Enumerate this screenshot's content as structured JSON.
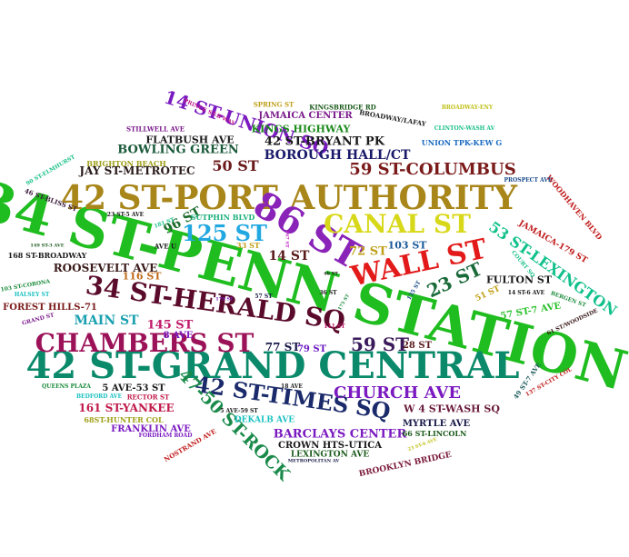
{
  "words": [
    {
      "text": "34 ST-PENN STATION",
      "color": "#1fbd1f",
      "rotate": 15
    },
    {
      "text": "42 ST-GRAND CENTRAL",
      "color": "#0a8a6a"
    },
    {
      "text": "42 ST-PORT AUTHORITY",
      "color": "#a8861a"
    },
    {
      "text": "34 ST-HERALD SQ",
      "color": "#5a0a2a",
      "rotate": 8
    },
    {
      "text": "CHAMBERS ST",
      "color": "#9c1259"
    },
    {
      "text": "86 ST",
      "color": "#8a24b8",
      "rotate": 30
    },
    {
      "text": "CANAL ST",
      "color": "#d8d81a"
    },
    {
      "text": "WALL ST",
      "color": "#e21a1a",
      "rotate": -12
    },
    {
      "text": "42 ST-TIMES SQ",
      "color": "#1a2a6a",
      "rotate": 8
    },
    {
      "text": "125 ST",
      "color": "#22a8e0"
    },
    {
      "text": "14 ST-UNION SQ",
      "color": "#7a1ac0",
      "rotate": 18
    },
    {
      "text": "47-50 ST-ROCK",
      "color": "#1a8a4a",
      "rotate": 45
    },
    {
      "text": "53 ST-LEXINGTON",
      "color": "#10c08a",
      "rotate": 35
    },
    {
      "text": "CHURCH AVE",
      "color": "#7a1ac0"
    },
    {
      "text": "59 ST-COLUMBUS",
      "color": "#7a1a1a"
    },
    {
      "text": "59 ST",
      "color": "#3a1a5a"
    },
    {
      "text": "23 ST",
      "color": "#1a6a3a",
      "rotate": -25
    },
    {
      "text": "96 ST",
      "color": "#1a6a2a",
      "rotate": -30
    },
    {
      "text": "50 ST",
      "color": "#6a1a1a"
    },
    {
      "text": "BOROUGH HALL/CT",
      "color": "#1a1a6a"
    },
    {
      "text": "42 ST-BRYANT PK",
      "color": "#1a1a1a"
    },
    {
      "text": "ROOSEVELT AVE",
      "color": "#3a1a1a"
    },
    {
      "text": "MAIN ST",
      "color": "#1aa0b0"
    },
    {
      "text": "BARCLAYS CENTER",
      "color": "#7a1ac0"
    },
    {
      "text": "W 4 ST-WASH SQ",
      "color": "#6a1a3a"
    },
    {
      "text": "JAY ST-METROTEC",
      "color": "#2a1a1a"
    },
    {
      "text": "BOWLING GREEN",
      "color": "#1a5a3a"
    },
    {
      "text": "FLATBUSH AVE",
      "color": "#1a1a1a"
    },
    {
      "text": "KINGS HIGHWAY",
      "color": "#1a8a1a"
    },
    {
      "text": "JAMAICA CENTER",
      "color": "#7a1a8a"
    },
    {
      "text": "145 ST",
      "color": "#c01a6a"
    },
    {
      "text": "14 ST",
      "color": "#5a1a1a"
    },
    {
      "text": "77 ST",
      "color": "#1a1a4a"
    },
    {
      "text": "72 ST",
      "color": "#c0a01a"
    },
    {
      "text": "103 ST",
      "color": "#1a5a9a"
    },
    {
      "text": "FULTON ST",
      "color": "#1a1a1a"
    },
    {
      "text": "JAMAICA-179 ST",
      "color": "#c01a1a",
      "rotate": 30
    },
    {
      "text": "WOODHAVEN BLVD",
      "color": "#c01a1a",
      "rotate": 50
    },
    {
      "text": "161 ST-YANKEE",
      "color": "#c01a4a"
    },
    {
      "text": "CROWN HTS-UTICA",
      "color": "#1a1a1a"
    },
    {
      "text": "MYRTLE AVE",
      "color": "#1a1a4a"
    },
    {
      "text": "FRANKLIN AVE",
      "color": "#7a1ac0"
    },
    {
      "text": "LEXINGTON AVE",
      "color": "#1a5a1a"
    },
    {
      "text": "BROOKLYN BRIDGE",
      "color": "#7a1a3a",
      "rotate": -12
    },
    {
      "text": "FOREST HILLS-71",
      "color": "#7a1a1a"
    },
    {
      "text": "5 AVE-53 ST",
      "color": "#1a1a1a"
    },
    {
      "text": "116 ST",
      "color": "#c06a1a"
    },
    {
      "text": "57 ST-7 AVE",
      "color": "#2ac02a",
      "rotate": -10
    },
    {
      "text": "28 ST",
      "color": "#5a1a1a"
    },
    {
      "text": "79 ST",
      "color": "#6a1ac0"
    },
    {
      "text": "UNION TPK-KEW G",
      "color": "#1a6ac0"
    },
    {
      "text": "SUTPHIN BLVD",
      "color": "#1ab07a"
    },
    {
      "text": "DEKALB AVE",
      "color": "#1ac0c0"
    },
    {
      "text": "8 AVE",
      "color": "#7a1ac0"
    },
    {
      "text": "51 ST",
      "color": "#c0a01a",
      "rotate": -25
    },
    {
      "text": "BRIGHTON BEACH",
      "color": "#a0a01a"
    },
    {
      "text": "68ST-HUNTER COL",
      "color": "#a0a01a"
    },
    {
      "text": "49 ST-7 AVE",
      "color": "#1a5a5a",
      "rotate": -55
    },
    {
      "text": "66 ST-LINCOLN",
      "color": "#1a5a1a"
    },
    {
      "text": "168 ST-BROADWAY",
      "color": "#1a1a1a"
    },
    {
      "text": "PRINCE ST-B'WAY",
      "color": "#c01a8a",
      "rotate": 25
    },
    {
      "text": "SPRING ST",
      "color": "#c0a01a"
    },
    {
      "text": "KINGSBRIDGE RD",
      "color": "#1a5a1a"
    },
    {
      "text": "BROADWAY/LAFAY",
      "color": "#1a1a1a",
      "rotate": 10
    },
    {
      "text": "BROADWAY-ENY",
      "color": "#c0c01a"
    },
    {
      "text": "CLINTON-WASH AV",
      "color": "#1ac08a"
    },
    {
      "text": "STILLWELL AVE",
      "color": "#7a1a8a"
    },
    {
      "text": "90 ST-ELMHURST",
      "color": "#1ac08a",
      "rotate": -30
    },
    {
      "text": "46 ST-BLISS ST",
      "color": "#3a1a3a",
      "rotate": 20
    },
    {
      "text": "23 ST-5 AVE",
      "color": "#1a1a1a"
    },
    {
      "text": "181 ST",
      "color": "#1ac08a",
      "rotate": -20
    },
    {
      "text": "PROSPECT AVE",
      "color": "#1a4a8a"
    },
    {
      "text": "149 ST-3 AVE",
      "color": "#1a5a1a"
    },
    {
      "text": "AVE U",
      "color": "#1a1a1a"
    },
    {
      "text": "33 ST",
      "color": "#c0a01a"
    },
    {
      "text": "103 ST-CORONA",
      "color": "#1a8a3a",
      "rotate": -10
    },
    {
      "text": "HALSEY ST",
      "color": "#1ac0c0"
    },
    {
      "text": "GRAND ST",
      "color": "#7a1a8a",
      "rotate": -15
    },
    {
      "text": "170 ST",
      "color": "#7a1ac0"
    },
    {
      "text": "57 ST",
      "color": "#1a1a4a"
    },
    {
      "text": "46 ST",
      "color": "#1a1a1a"
    },
    {
      "text": "36 ST",
      "color": "#1a1a1a"
    },
    {
      "text": "111 ST",
      "color": "#c01a6a"
    },
    {
      "text": "135 ST",
      "color": "#1a4a8a",
      "rotate": -60
    },
    {
      "text": "18 AVE",
      "color": "#1a1a1a"
    },
    {
      "text": "14 ST-6 AVE",
      "color": "#1a1a1a"
    },
    {
      "text": "COURT SQ",
      "color": "#1ac08a",
      "rotate": 50
    },
    {
      "text": "BERGEN ST",
      "color": "#1a8a3a",
      "rotate": 20
    },
    {
      "text": "61 ST/WOODSIDE",
      "color": "#3a1a1a",
      "rotate": -25
    },
    {
      "text": "137 ST-CITY COL",
      "color": "#c01a1a",
      "rotate": -30
    },
    {
      "text": "QUEENS PLAZA",
      "color": "#1a8a3a"
    },
    {
      "text": "BEDFORD AVE",
      "color": "#1ac0c0"
    },
    {
      "text": "RECTOR ST",
      "color": "#c01a4a"
    },
    {
      "text": "5 AVE-59 ST",
      "color": "#1a1a1a"
    },
    {
      "text": "FORDHAM ROAD",
      "color": "#7a1ac0"
    },
    {
      "text": "NOSTRAND AVE",
      "color": "#c01a1a",
      "rotate": -30
    },
    {
      "text": "METROPOLITAN AV",
      "color": "#1a1a4a"
    },
    {
      "text": "23 ST-6 AVE",
      "color": "#c0c01a",
      "rotate": -20
    },
    {
      "text": "167 ST",
      "color": "#c01ac0",
      "rotate": 90
    },
    {
      "text": "175 ST",
      "color": "#1a8a3a",
      "rotate": -60
    }
  ]
}
